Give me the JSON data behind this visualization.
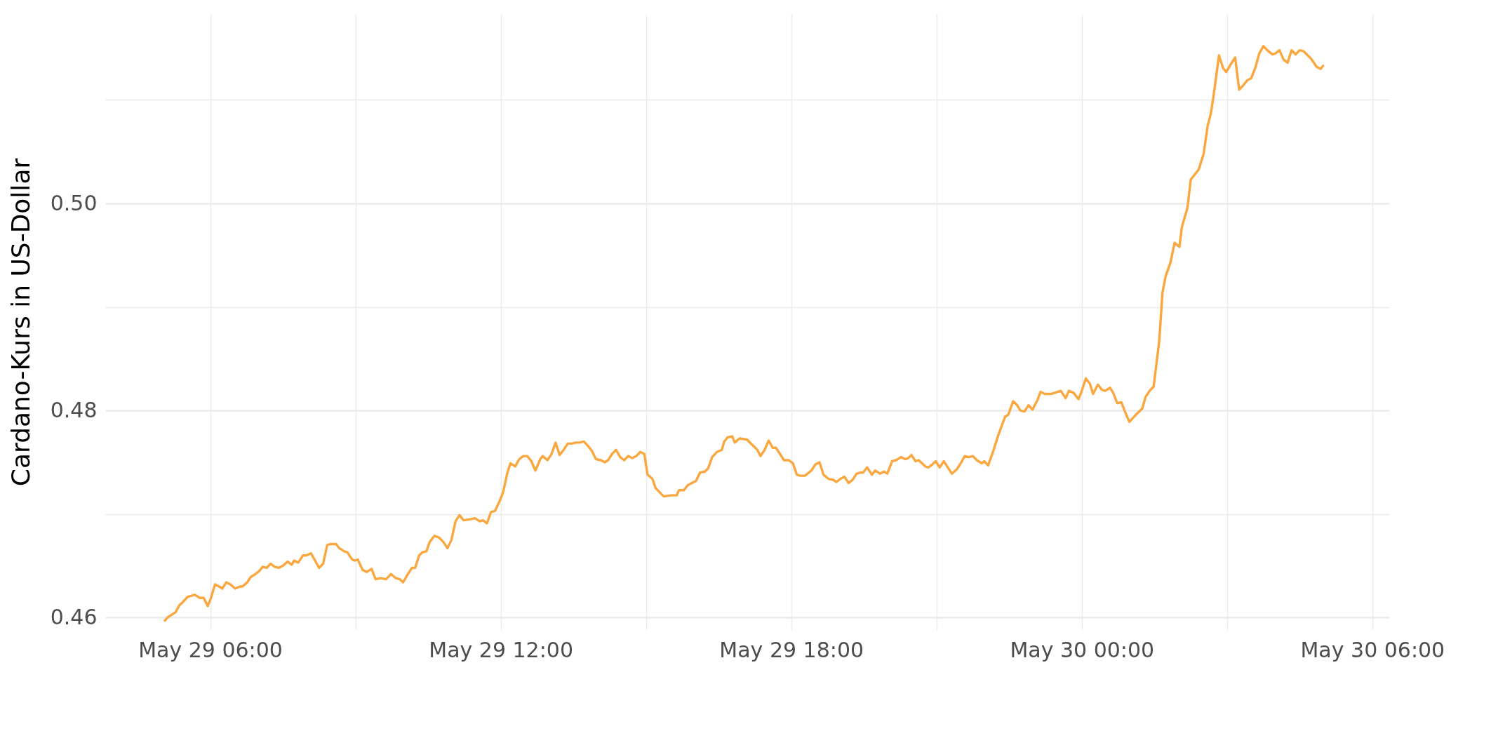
{
  "chart_data": {
    "type": "line",
    "ylabel": "Cardano-Kurs in US-Dollar",
    "x": [
      "--05-29T05:04",
      "--05-29T05:07",
      "--05-29T05:17",
      "--05-29T05:22",
      "--05-29T05:25",
      "--05-29T05:32",
      "--05-29T05:41",
      "--05-29T05:47",
      "--05-29T05:52",
      "--05-29T05:57",
      "--05-29T06:01",
      "--05-29T06:06",
      "--05-29T06:11",
      "--05-29T06:15",
      "--05-29T06:20",
      "--05-29T06:25",
      "--05-29T06:31",
      "--05-29T06:37",
      "--05-29T06:40",
      "--05-29T06:46",
      "--05-29T06:50",
      "--05-29T06:56",
      "--05-29T07:01",
      "--05-29T07:05",
      "--05-29T07:10",
      "--05-29T07:15",
      "--05-29T07:20",
      "--05-29T07:25",
      "--05-29T07:30",
      "--05-29T07:36",
      "--05-29T07:41",
      "--05-29T07:44",
      "--05-29T07:49",
      "--05-29T07:55",
      "--05-29T07:59",
      "--05-29T08:05",
      "--05-29T08:10",
      "--05-29T08:15",
      "--05-29T08:20",
      "--05-29T08:25",
      "--05-29T08:29",
      "--05-29T08:36",
      "--05-29T08:40",
      "--05-29T08:46",
      "--05-29T08:50",
      "--05-29T08:56",
      "--05-29T08:59",
      "--05-29T09:03",
      "--05-29T09:09",
      "--05-29T09:14",
      "--05-29T09:20",
      "--05-29T09:25",
      "--05-29T09:31",
      "--05-29T09:38",
      "--05-29T09:44",
      "--05-29T09:50",
      "--05-29T09:55",
      "--05-29T09:59",
      "--05-29T10:05",
      "--05-29T10:10",
      "--05-29T10:14",
      "--05-29T10:19",
      "--05-29T10:23",
      "--05-29T10:28",
      "--05-29T10:32",
      "--05-29T10:38",
      "--05-29T10:44",
      "--05-29T10:49",
      "--05-29T10:54",
      "--05-29T10:59",
      "--05-29T11:04",
      "--05-29T11:09",
      "--05-29T11:14",
      "--05-29T11:23",
      "--05-29T11:28",
      "--05-29T11:34",
      "--05-29T11:38",
      "--05-29T11:43",
      "--05-29T11:48",
      "--05-29T11:53",
      "--05-29T11:59",
      "--05-29T12:03",
      "--05-29T12:08",
      "--05-29T12:12",
      "--05-29T12:18",
      "--05-29T12:23",
      "--05-29T12:28",
      "--05-29T12:33",
      "--05-29T12:38",
      "--05-29T12:43",
      "--05-29T12:49",
      "--05-29T12:52",
      "--05-29T12:58",
      "--05-29T13:03",
      "--05-29T13:08",
      "--05-29T13:13",
      "--05-29T13:18",
      "--05-29T13:23",
      "--05-29T13:28",
      "--05-29T13:33",
      "--05-29T13:38",
      "--05-29T13:43",
      "--05-29T13:48",
      "--05-29T13:53",
      "--05-29T13:58",
      "--05-29T14:04",
      "--05-29T14:09",
      "--05-29T14:13",
      "--05-29T14:18",
      "--05-29T14:23",
      "--05-29T14:28",
      "--05-29T14:33",
      "--05-29T14:38",
      "--05-29T14:43",
      "--05-29T14:48",
      "--05-29T14:53",
      "--05-29T14:58",
      "--05-29T15:02",
      "--05-29T15:08",
      "--05-29T15:12",
      "--05-29T15:22",
      "--05-29T15:31",
      "--05-29T15:38",
      "--05-29T15:41",
      "--05-29T15:47",
      "--05-29T15:52",
      "--05-29T16:02",
      "--05-29T16:07",
      "--05-29T16:13",
      "--05-29T16:17",
      "--05-29T16:22",
      "--05-29T16:28",
      "--05-29T16:34",
      "--05-29T16:37",
      "--05-29T16:41",
      "--05-29T16:47",
      "--05-29T16:50",
      "--05-29T16:56",
      "--05-29T17:05",
      "--05-29T17:18",
      "--05-29T17:22",
      "--05-29T17:27",
      "--05-29T17:32",
      "--05-29T17:37",
      "--05-29T17:41",
      "--05-29T17:47",
      "--05-29T17:51",
      "--05-29T17:57",
      "--05-29T18:02",
      "--05-29T18:07",
      "--05-29T18:11",
      "--05-29T18:17",
      "--05-29T18:25",
      "--05-29T18:30",
      "--05-29T18:35",
      "--05-29T18:40",
      "--05-29T18:46",
      "--05-29T18:52",
      "--05-29T18:56",
      "--05-29T19:01",
      "--05-29T19:06",
      "--05-29T19:11",
      "--05-29T19:16",
      "--05-29T19:21",
      "--05-29T19:26",
      "--05-29T19:29",
      "--05-29T19:34",
      "--05-29T19:40",
      "--05-29T19:44",
      "--05-29T19:50",
      "--05-29T19:55",
      "--05-29T19:59",
      "--05-29T20:05",
      "--05-29T20:10",
      "--05-29T20:16",
      "--05-29T20:21",
      "--05-29T20:25",
      "--05-29T20:29",
      "--05-29T20:34",
      "--05-29T20:38",
      "--05-29T20:46",
      "--05-29T20:50",
      "--05-29T20:55",
      "--05-29T20:59",
      "--05-29T21:04",
      "--05-29T21:09",
      "--05-29T21:14",
      "--05-29T21:19",
      "--05-29T21:25",
      "--05-29T21:30",
      "--05-29T21:35",
      "--05-29T21:40",
      "--05-29T21:45",
      "--05-29T21:50",
      "--05-29T21:56",
      "--05-29T21:59",
      "--05-29T22:04",
      "--05-29T22:10",
      "--05-29T22:16",
      "--05-29T22:25",
      "--05-29T22:29",
      "--05-29T22:35",
      "--05-29T22:40",
      "--05-29T22:44",
      "--05-29T22:49",
      "--05-29T22:54",
      "--05-29T22:59",
      "--05-29T23:05",
      "--05-29T23:09",
      "--05-29T23:14",
      "--05-29T23:22",
      "--05-29T23:34",
      "--05-29T23:40",
      "--05-29T23:44",
      "--05-29T23:50",
      "--05-29T23:56",
      "--05-30T00:00",
      "--05-30T00:05",
      "--05-30T00:10",
      "--05-30T00:14",
      "--05-30T00:20",
      "--05-30T00:25",
      "--05-30T00:29",
      "--05-30T00:35",
      "--05-30T00:39",
      "--05-30T00:44",
      "--05-30T00:49",
      "--05-30T00:54",
      "--05-30T00:59",
      "--05-30T01:06",
      "--05-30T01:15",
      "--05-30T01:19",
      "--05-30T01:25",
      "--05-30T01:29",
      "--05-30T01:36",
      "--05-30T01:40",
      "--05-30T01:44",
      "--05-30T01:50",
      "--05-30T01:55",
      "--05-30T02:01",
      "--05-30T02:04",
      "--05-30T02:11",
      "--05-30T02:15",
      "--05-30T02:25",
      "--05-30T02:31",
      "--05-30T02:36",
      "--05-30T02:40",
      "--05-30T02:44",
      "--05-30T02:50",
      "--05-30T02:55",
      "--05-30T02:59",
      "--05-30T03:05",
      "--05-30T03:10",
      "--05-30T03:15",
      "--05-30T03:20",
      "--05-30T03:25",
      "--05-30T03:30",
      "--05-30T03:35",
      "--05-30T03:40",
      "--05-30T03:45",
      "--05-30T03:50",
      "--05-30T03:56",
      "--05-30T04:00",
      "--05-30T04:05",
      "--05-30T04:10",
      "--05-30T04:15",
      "--05-30T04:20",
      "--05-30T04:25",
      "--05-30T04:30",
      "--05-30T04:35",
      "--05-30T04:40",
      "--05-30T04:44",
      "--05-30T04:51",
      "--05-30T04:56",
      "--05-30T04:59"
    ],
    "series": [
      {
        "color": "#f9a73e",
        "values": [
          0.4597,
          0.46,
          0.4605,
          0.4612,
          0.4614,
          0.462,
          0.4622,
          0.4619,
          0.4619,
          0.4611,
          0.4619,
          0.4632,
          0.463,
          0.4628,
          0.4634,
          0.4632,
          0.4628,
          0.463,
          0.463,
          0.4634,
          0.4639,
          0.4642,
          0.4645,
          0.4649,
          0.4648,
          0.4652,
          0.4649,
          0.4648,
          0.465,
          0.4654,
          0.4651,
          0.4655,
          0.4653,
          0.466,
          0.466,
          0.4662,
          0.4655,
          0.4648,
          0.4652,
          0.467,
          0.4671,
          0.4671,
          0.4667,
          0.4664,
          0.4663,
          0.4656,
          0.4655,
          0.4656,
          0.4646,
          0.4644,
          0.4647,
          0.4637,
          0.4638,
          0.4637,
          0.4642,
          0.4638,
          0.4637,
          0.4634,
          0.4642,
          0.4648,
          0.4648,
          0.466,
          0.4663,
          0.4664,
          0.4673,
          0.4679,
          0.4677,
          0.4673,
          0.4667,
          0.4675,
          0.4693,
          0.4699,
          0.4694,
          0.4695,
          0.4696,
          0.4693,
          0.4694,
          0.4691,
          0.4702,
          0.4703,
          0.4713,
          0.4721,
          0.4739,
          0.4749,
          0.4746,
          0.4753,
          0.4756,
          0.4756,
          0.4751,
          0.4742,
          0.4753,
          0.4756,
          0.4752,
          0.4758,
          0.4769,
          0.4757,
          0.4762,
          0.4768,
          0.4768,
          0.4769,
          0.4769,
          0.477,
          0.4766,
          0.4761,
          0.4753,
          0.4752,
          0.475,
          0.4752,
          0.4758,
          0.4762,
          0.4755,
          0.4752,
          0.4756,
          0.4754,
          0.4756,
          0.476,
          0.4758,
          0.4738,
          0.4734,
          0.4725,
          0.4717,
          0.4718,
          0.4718,
          0.4723,
          0.4723,
          0.4728,
          0.4732,
          0.474,
          0.4741,
          0.4744,
          0.4755,
          0.476,
          0.4762,
          0.477,
          0.4774,
          0.4775,
          0.4769,
          0.4773,
          0.4772,
          0.4762,
          0.4756,
          0.4762,
          0.4771,
          0.4764,
          0.4764,
          0.4757,
          0.4752,
          0.4752,
          0.4749,
          0.4738,
          0.4737,
          0.4737,
          0.4742,
          0.4748,
          0.475,
          0.4738,
          0.4734,
          0.4733,
          0.4731,
          0.4734,
          0.4736,
          0.473,
          0.4733,
          0.4739,
          0.474,
          0.474,
          0.4745,
          0.4738,
          0.4742,
          0.4739,
          0.4741,
          0.4739,
          0.4751,
          0.4752,
          0.4755,
          0.4753,
          0.4754,
          0.4757,
          0.4751,
          0.4752,
          0.4746,
          0.4745,
          0.4748,
          0.4751,
          0.4745,
          0.4751,
          0.4745,
          0.4739,
          0.4743,
          0.4749,
          0.4756,
          0.4755,
          0.4756,
          0.4752,
          0.4749,
          0.4751,
          0.4747,
          0.476,
          0.4775,
          0.4794,
          0.4796,
          0.4809,
          0.4805,
          0.48,
          0.4799,
          0.4805,
          0.4801,
          0.481,
          0.4818,
          0.4816,
          0.4816,
          0.4819,
          0.4812,
          0.4819,
          0.4817,
          0.4811,
          0.4819,
          0.4831,
          0.4826,
          0.4816,
          0.4825,
          0.482,
          0.4819,
          0.4822,
          0.4817,
          0.4807,
          0.4808,
          0.4798,
          0.4789,
          0.4795,
          0.4802,
          0.4813,
          0.482,
          0.4823,
          0.4867,
          0.4914,
          0.493,
          0.4943,
          0.4962,
          0.4958,
          0.4977,
          0.4996,
          0.5023,
          0.5033,
          0.5048,
          0.5075,
          0.5087,
          0.5108,
          0.5143,
          0.5131,
          0.5127,
          0.5135,
          0.5141,
          0.511,
          0.5114,
          0.5119,
          0.5121,
          0.5131,
          0.5145,
          0.5152,
          0.5148,
          0.5144,
          0.5145,
          0.5148,
          0.5139,
          0.5136,
          0.5148,
          0.5144,
          0.5148,
          0.5147,
          0.5143,
          0.514,
          0.5132,
          0.513,
          0.5133
        ]
      }
    ],
    "xlim": [
      "--05-29T03:50",
      "--05-30T06:21"
    ],
    "xticks": [
      {
        "value": "--05-29T06:00",
        "label": "May 29 06:00"
      },
      {
        "value": "--05-29T09:00",
        "label": null
      },
      {
        "value": "--05-29T12:00",
        "label": "May 29 12:00"
      },
      {
        "value": "--05-29T15:00",
        "label": null
      },
      {
        "value": "--05-29T18:00",
        "label": "May 29 18:00"
      },
      {
        "value": "--05-29T21:00",
        "label": null
      },
      {
        "value": "--05-30T00:00",
        "label": "May 30 00:00"
      },
      {
        "value": "--05-30T03:00",
        "label": null
      },
      {
        "value": "--05-30T06:00",
        "label": "May 30 06:00"
      }
    ],
    "ylim": [
      0.4588,
      0.5183
    ],
    "yticks": [
      0.46,
      {
        "value": 0.47,
        "label": null
      },
      0.48,
      {
        "value": 0.49,
        "label": null
      },
      {
        "value": 0.5,
        "label": "0.50"
      },
      {
        "value": 0.51,
        "label": null
      }
    ],
    "grid": true
  }
}
